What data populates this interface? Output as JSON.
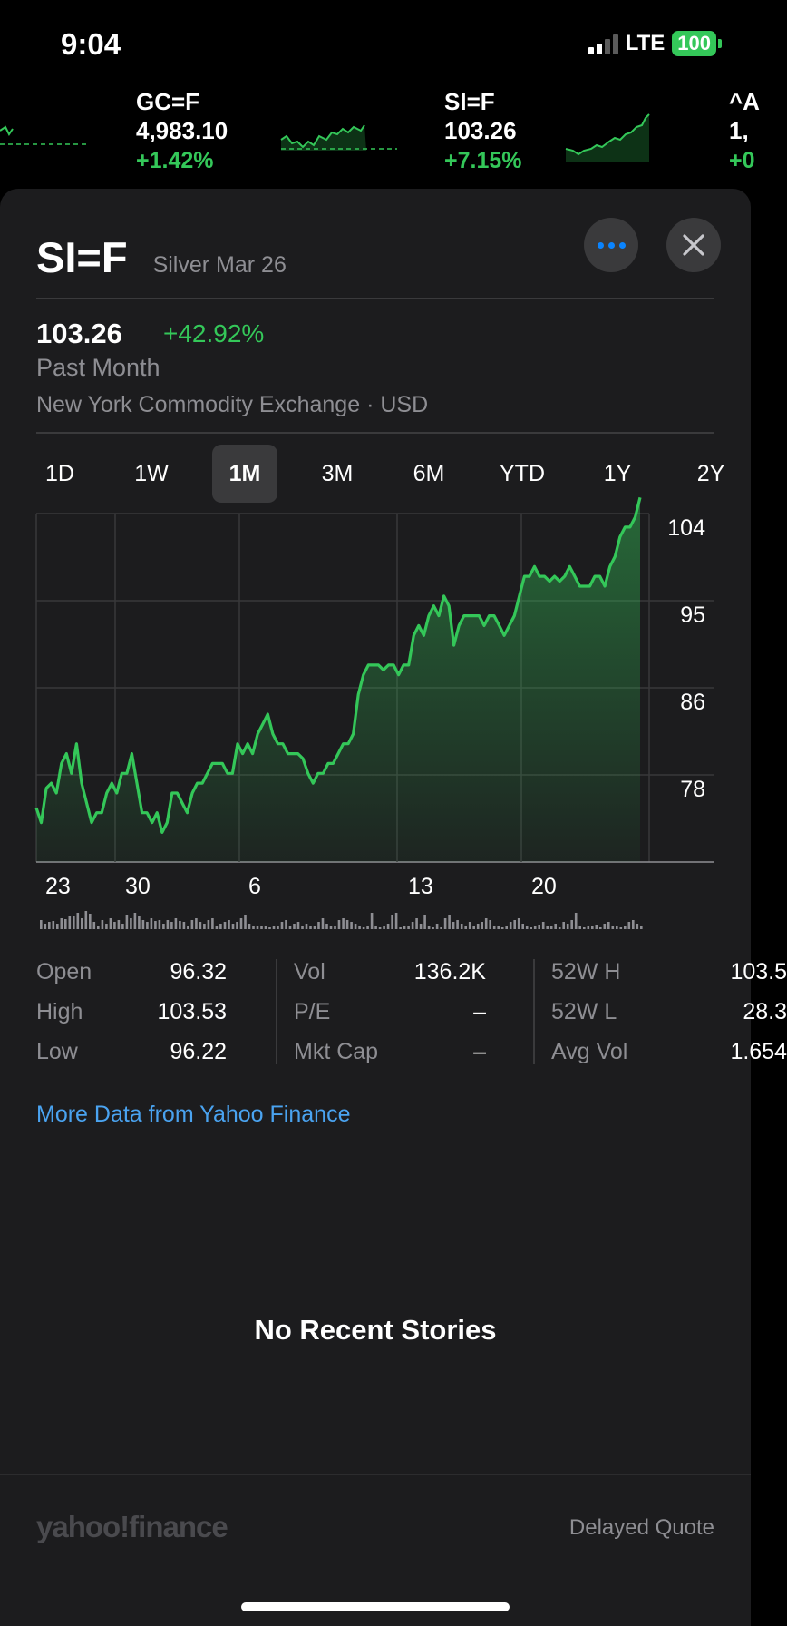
{
  "status_bar": {
    "time": "9:04",
    "network": "LTE",
    "battery": "100"
  },
  "ticker": [
    {
      "symbol": "",
      "price": "",
      "change": ""
    },
    {
      "symbol": "GC=F",
      "price": "4,983.10",
      "change": "+1.42%"
    },
    {
      "symbol": "SI=F",
      "price": "103.26",
      "change": "+7.15%"
    },
    {
      "symbol": "^A",
      "price": "1,",
      "change": "+0"
    }
  ],
  "header": {
    "symbol": "SI=F",
    "name": "Silver Mar 26",
    "more_icon": "ellipsis-icon",
    "close_icon": "close-icon"
  },
  "quote": {
    "price": "103.26",
    "change": "+42.92%",
    "period": "Past Month",
    "exchange": "New York Commodity Exchange · USD"
  },
  "ranges": [
    "1D",
    "1W",
    "1M",
    "3M",
    "6M",
    "YTD",
    "1Y",
    "2Y"
  ],
  "active_range": "1M",
  "chart_data": {
    "type": "area",
    "y_ticks": [
      "104",
      "95",
      "86",
      "78"
    ],
    "x_ticks": [
      "23",
      "30",
      "6",
      "13",
      "20"
    ],
    "y_range": [
      69,
      104
    ],
    "values": [
      74.5,
      73,
      76.5,
      77,
      76,
      79,
      80,
      78,
      81,
      77,
      75,
      73,
      74,
      74,
      76,
      77,
      76,
      78,
      78,
      80,
      77,
      74,
      74,
      73,
      74,
      72,
      73,
      76,
      76,
      75,
      74,
      76,
      77,
      77,
      78,
      79,
      79,
      79,
      78,
      78,
      81,
      80,
      81,
      80,
      82,
      83,
      84,
      82,
      81,
      81,
      80,
      80,
      80,
      79.5,
      78,
      77,
      78,
      78,
      79,
      79,
      80,
      81,
      81,
      82,
      86,
      88,
      89,
      89,
      89,
      88.5,
      89,
      89,
      88,
      89,
      89,
      92,
      93,
      92,
      94,
      95,
      94,
      96,
      95,
      91,
      93,
      94,
      94,
      94,
      94,
      93,
      94,
      94,
      93,
      92,
      93,
      94,
      96,
      98,
      98,
      99,
      98,
      98,
      97.5,
      98,
      97.5,
      98,
      99,
      98,
      97,
      97,
      97,
      98,
      98,
      97,
      99,
      100,
      102,
      103,
      103,
      104,
      106
    ]
  },
  "volume_bars": [
    10,
    6,
    8,
    9,
    6,
    12,
    11,
    15,
    14,
    18,
    12,
    20,
    17,
    8,
    4,
    10,
    6,
    12,
    8,
    10,
    6,
    16,
    12,
    18,
    14,
    10,
    8,
    12,
    9,
    10,
    6,
    10,
    8,
    12,
    9,
    8,
    4,
    10,
    12,
    8,
    6,
    10,
    12,
    4,
    6,
    8,
    10,
    6,
    8,
    12,
    16,
    6,
    4,
    3,
    4,
    3,
    2,
    4,
    3,
    8,
    10,
    4,
    6,
    8,
    3,
    6,
    4,
    3,
    8,
    12,
    6,
    4,
    3,
    10,
    12,
    10,
    8,
    6,
    4,
    2,
    3,
    18,
    4,
    2,
    3,
    6,
    16,
    18,
    2,
    4,
    3,
    8,
    12,
    6,
    16,
    4,
    2,
    6,
    2,
    12,
    16,
    8,
    10,
    6,
    4,
    8,
    4,
    6,
    8,
    12,
    10,
    4,
    3,
    2,
    4,
    8,
    10,
    12,
    6,
    3,
    2,
    3,
    5,
    8,
    3,
    4,
    6,
    2,
    8,
    6,
    10,
    18,
    4,
    2,
    4,
    3,
    5,
    2,
    6,
    8,
    4,
    3,
    2,
    4,
    8,
    10,
    6,
    4
  ],
  "stats": {
    "col1": [
      {
        "label": "Open",
        "value": "96.32"
      },
      {
        "label": "High",
        "value": "103.53"
      },
      {
        "label": "Low",
        "value": "96.22"
      }
    ],
    "col2": [
      {
        "label": "Vol",
        "value": "136.2K"
      },
      {
        "label": "P/E",
        "value": "–"
      },
      {
        "label": "Mkt Cap",
        "value": "–"
      }
    ],
    "col3": [
      {
        "label": "52W H",
        "value": "103.5"
      },
      {
        "label": "52W L",
        "value": "28.3"
      },
      {
        "label": "Avg Vol",
        "value": "1.654"
      }
    ]
  },
  "more_data_link": "More Data from Yahoo Finance",
  "no_stories": "No Recent Stories",
  "footer": {
    "brand": "yahoo!finance",
    "delayed": "Delayed Quote"
  },
  "colors": {
    "up": "#34c759",
    "link": "#0a84ff",
    "sheet": "#1c1c1e"
  }
}
